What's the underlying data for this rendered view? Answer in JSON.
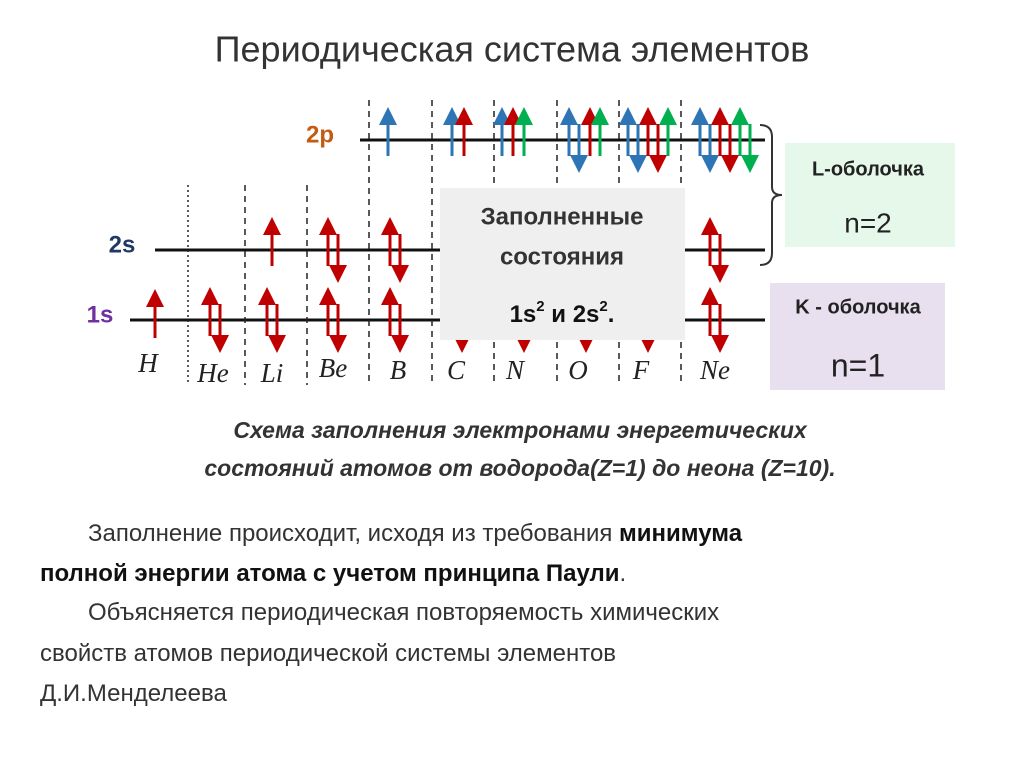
{
  "title": "Периодическая система элементов",
  "levels": [
    "2p",
    "2s",
    "1s"
  ],
  "elements": [
    "H",
    "He",
    "Li",
    "Be",
    "B",
    "C",
    "N",
    "O",
    "F",
    "Ne"
  ],
  "box": {
    "lines": [
      "Заполненные",
      "состояния"
    ],
    "formula": [
      "1s",
      "2",
      " и 2s",
      "2",
      "."
    ]
  },
  "shells": [
    {
      "label": "L-оболочка",
      "n": "n=2"
    },
    {
      "label": "K - оболочка",
      "n": "n=1"
    }
  ],
  "caption": [
    "Схема заполнения электронами энергетических",
    "состояний атомов от водорода(Z=1) до неона (Z=10)."
  ],
  "paragraphs": [
    [
      [
        {
          "text": "Заполнение происходит, исходя из требования ",
          "bold": false
        },
        {
          "text": "минимума",
          "bold": true
        }
      ],
      [
        {
          "text": "полной энергии атома с учетом принципа Паули",
          "bold": true
        },
        {
          "text": ".",
          "bold": false
        }
      ]
    ],
    [
      [
        {
          "text": "Объясняется периодическая повторяемость химических",
          "bold": false
        }
      ],
      [
        {
          "text": "свойств атомов периодической системы элементов",
          "bold": false
        }
      ],
      [
        {
          "text": "Д.И.Менделеева",
          "bold": false
        }
      ]
    ]
  ]
}
